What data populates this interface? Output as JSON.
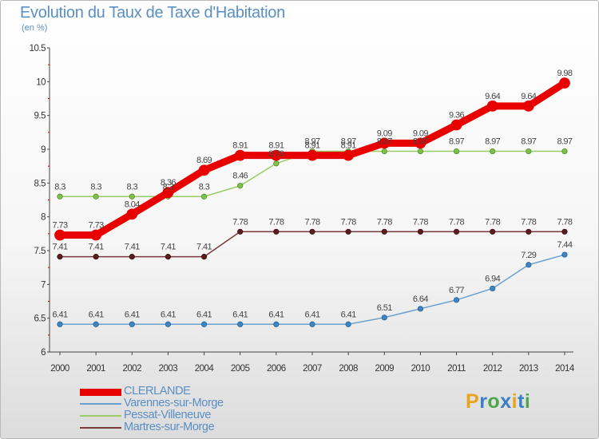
{
  "header": {
    "title": "Evolution du Taux de Taxe d'Habitation",
    "unit": "(en %)"
  },
  "logo": {
    "text": "Proxiti",
    "letters": [
      "P",
      "r",
      "o",
      "x",
      "i",
      "t",
      "i"
    ],
    "colors": [
      "#e8a31b",
      "#3a7fc4",
      "#4aa84a",
      "#3a7fc4",
      "#e8a31b",
      "#3a7fc4",
      "#4aa84a"
    ]
  },
  "chart_data": {
    "type": "line",
    "x": [
      "2000",
      "2001",
      "2002",
      "2003",
      "2004",
      "2005",
      "2006",
      "2007",
      "2008",
      "2009",
      "2010",
      "2011",
      "2012",
      "2013",
      "2014"
    ],
    "ylim": [
      6,
      10.5
    ],
    "yticks": [
      "6",
      "6.5",
      "7",
      "7.5",
      "8",
      "8.5",
      "9",
      "9.5",
      "10",
      "10.5"
    ],
    "grid": false,
    "legend_position": "bottom-left",
    "series": [
      {
        "name": "CLERLANDE",
        "color": "#e80000",
        "values": [
          7.73,
          7.73,
          8.04,
          8.36,
          8.69,
          8.91,
          8.91,
          8.91,
          8.91,
          9.09,
          9.09,
          9.36,
          9.64,
          9.64,
          9.98
        ]
      },
      {
        "name": "Varennes-sur-Morge",
        "color": "#6a9fce",
        "values": [
          6.41,
          6.41,
          6.41,
          6.41,
          6.41,
          6.41,
          6.41,
          6.41,
          6.41,
          6.51,
          6.64,
          6.77,
          6.94,
          7.29,
          7.44
        ]
      },
      {
        "name": "Pessat-Villeneuve",
        "color": "#99cc66",
        "values": [
          8.3,
          8.3,
          8.3,
          8.3,
          8.3,
          8.46,
          8.79,
          8.97,
          8.97,
          8.97,
          8.97,
          8.97,
          8.97,
          8.97,
          8.97
        ]
      },
      {
        "name": "Martres-sur-Morge",
        "color": "#7a3a3a",
        "values": [
          7.41,
          7.41,
          7.41,
          7.41,
          7.41,
          7.78,
          7.78,
          7.78,
          7.78,
          7.78,
          7.78,
          7.78,
          7.78,
          7.78,
          7.78
        ]
      }
    ]
  }
}
